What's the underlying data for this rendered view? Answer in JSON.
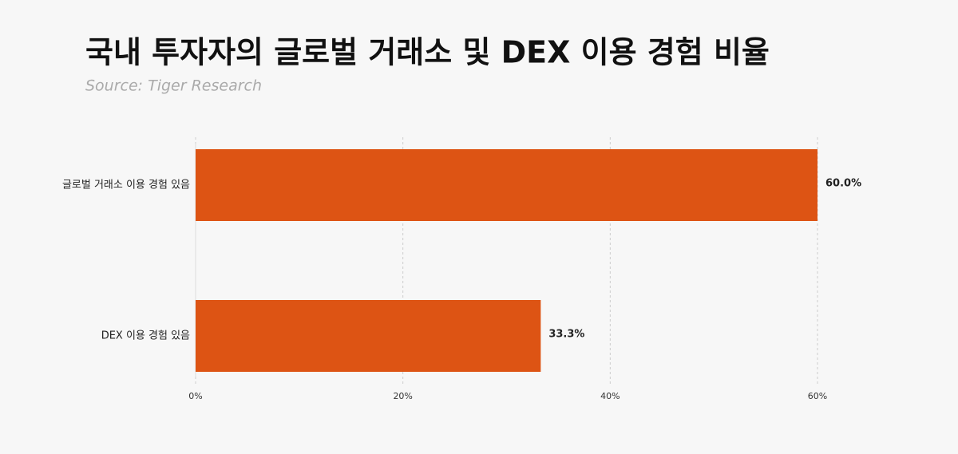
{
  "chart_data": {
    "type": "barh",
    "title": "국내 투자자의 글로벌 거래소 및 DEX 이용 경험 비율",
    "subtitle": "Source: Tiger Research",
    "categories": [
      "글로벌 거래소 이용 경험 있음",
      "DEX 이용 경험 있음"
    ],
    "values": [
      60.0,
      33.3
    ],
    "value_labels": [
      "60.0%",
      "33.3%"
    ],
    "color": "#dd5414",
    "xlim": [
      0,
      60
    ],
    "xticks": [
      {
        "value": 0,
        "label": "0%"
      },
      {
        "value": 20,
        "label": "20%"
      },
      {
        "value": 40,
        "label": "40%"
      },
      {
        "value": 60,
        "label": "60%"
      }
    ],
    "grid": true
  }
}
